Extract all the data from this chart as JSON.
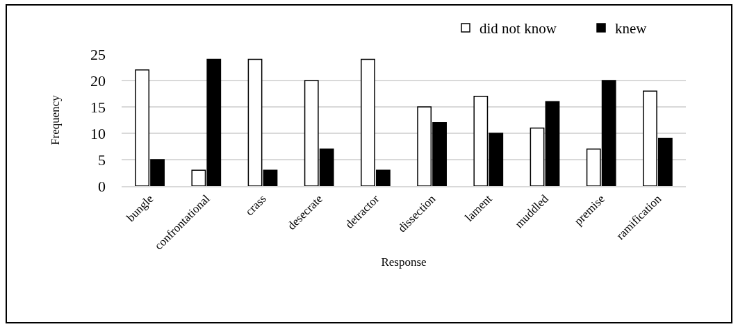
{
  "chart_data": {
    "type": "bar",
    "xlabel": "Response",
    "ylabel": "Frequency",
    "categories": [
      "bungle",
      "confrontational",
      "crass",
      "desecrate",
      "detractor",
      "dissection",
      "lament",
      "muddled",
      "premise",
      "ramification"
    ],
    "series": [
      {
        "name": "did not know",
        "color": "#ffffff",
        "values": [
          22,
          3,
          24,
          20,
          24,
          15,
          17,
          11,
          7,
          18
        ]
      },
      {
        "name": "knew",
        "color": "#000000",
        "values": [
          5,
          24,
          3,
          7,
          3,
          12,
          10,
          16,
          20,
          9
        ]
      }
    ],
    "ylim": [
      0,
      25
    ],
    "yticks": [
      0,
      5,
      10,
      15,
      20,
      25
    ],
    "grid": "y",
    "legend": "top right"
  }
}
